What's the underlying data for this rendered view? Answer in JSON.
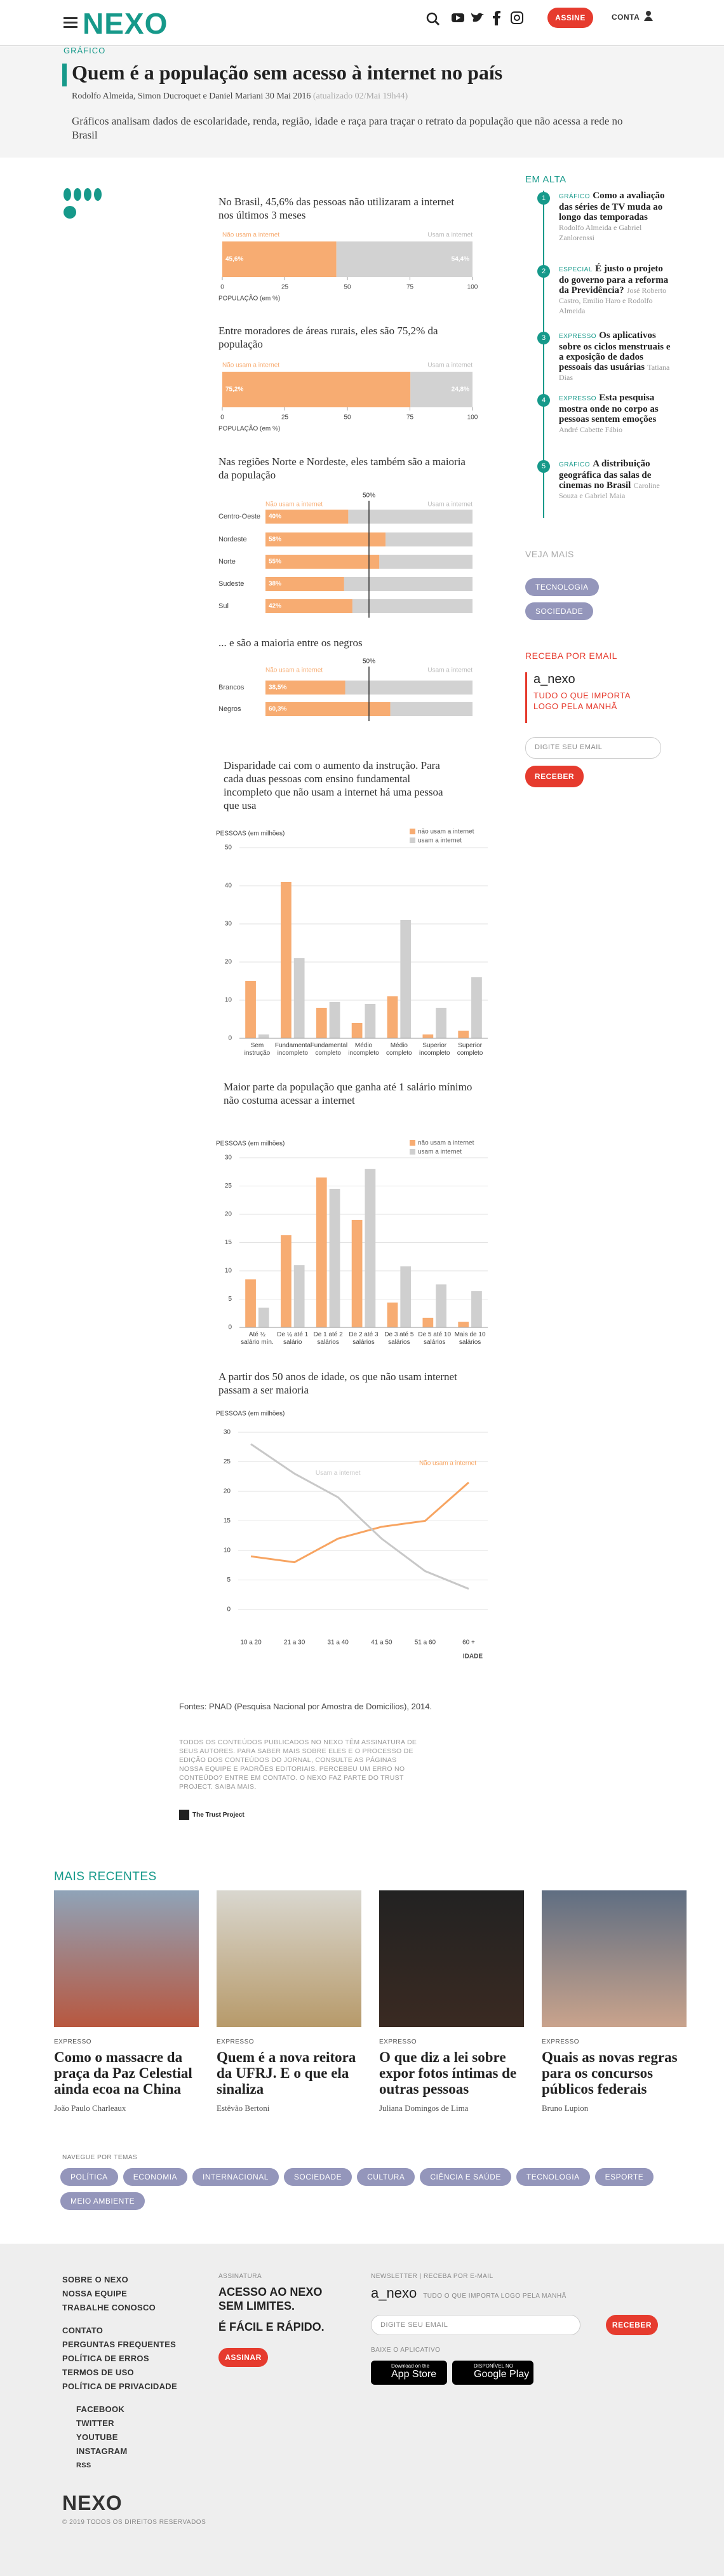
{
  "header": {
    "logo": "NEXO",
    "subscribe": "ASSINE",
    "account": "CONTA"
  },
  "article": {
    "kicker": "GRÁFICO",
    "title": "Quem é a população sem acesso à internet no país",
    "authors": "Rodolfo Almeida, Simon Ducroquet e Daniel Mariani",
    "date": "30 Mai 2016",
    "updated": "(atualizado 02/Mai 19h44)",
    "lede": "Gráficos analisam dados de escolaridade, renda, região, idade e raça para traçar o retrato da população que não acessa a rede no Brasil",
    "source": "Fontes: PNAD (Pesquisa Nacional por Amostra de Domicílios), 2014.",
    "disclaimer": "TODOS OS CONTEÚDOS PUBLICADOS NO NEXO TÊM ASSINATURA DE SEUS AUTORES. PARA SABER MAIS SOBRE ELES E O PROCESSO DE EDIÇÃO DOS CONTEÚDOS DO JORNAL, CONSULTE AS PÁGINAS NOSSA EQUIPE E PADRÕES EDITORIAIS. PERCEBEU UM ERRO NO CONTEÚDO? ENTRE EM CONTATO. O NEXO FAZ PARTE DO TRUST PROJECT. SAIBA MAIS.",
    "trust": "The Trust Project"
  },
  "chart_data": [
    {
      "type": "bar",
      "horizontal": true,
      "stacked": true,
      "title": "No Brasil, 45,6% das pessoas não utilizaram a internet nos últimos 3 meses",
      "series": [
        {
          "name": "Não usam a internet",
          "color": "#f7ac72",
          "values": [
            45.6
          ],
          "value_labels": [
            "45,6%"
          ]
        },
        {
          "name": "Usam a internet",
          "color": "#d2d2d2",
          "values": [
            54.4
          ],
          "value_labels": [
            "54,4%"
          ]
        }
      ],
      "xlim": [
        0,
        100
      ],
      "xticks": [
        0,
        25,
        50,
        75,
        100
      ],
      "xlabel": "POPULAÇÃO (em %)"
    },
    {
      "type": "bar",
      "horizontal": true,
      "stacked": true,
      "title": "Entre moradores de áreas rurais, eles são 75,2% da população",
      "series": [
        {
          "name": "Não usam a internet",
          "color": "#f7ac72",
          "values": [
            75.2
          ],
          "value_labels": [
            "75,2%"
          ]
        },
        {
          "name": "Usam a internet",
          "color": "#d2d2d2",
          "values": [
            24.8
          ],
          "value_labels": [
            "24,8%"
          ]
        }
      ],
      "xlim": [
        0,
        100
      ],
      "xticks": [
        0,
        25,
        50,
        75,
        100
      ],
      "xlabel": "POPULAÇÃO (em %)"
    },
    {
      "type": "bar",
      "horizontal": true,
      "stacked": true,
      "title": "Nas regiões Norte e Nordeste, eles também são a maioria da população",
      "categories": [
        "Centro-Oeste",
        "Nordeste",
        "Norte",
        "Sudeste",
        "Sul"
      ],
      "series": [
        {
          "name": "Não usam a internet",
          "color": "#f7ac72",
          "values": [
            40,
            58,
            55,
            38,
            42
          ],
          "value_labels": [
            "40%",
            "58%",
            "55%",
            "38%",
            "42%"
          ]
        },
        {
          "name": "Usam a internet",
          "color": "#d2d2d2",
          "values": [
            60,
            42,
            45,
            62,
            58
          ]
        }
      ],
      "xlim": [
        0,
        100
      ],
      "reference": {
        "value": 50,
        "label": "50%"
      }
    },
    {
      "type": "bar",
      "horizontal": true,
      "stacked": true,
      "title": "... e são a maioria entre os negros",
      "categories": [
        "Brancos",
        "Negros"
      ],
      "series": [
        {
          "name": "Não usam a internet",
          "color": "#f7ac72",
          "values": [
            38.5,
            60.3
          ],
          "value_labels": [
            "38,5%",
            "60,3%"
          ]
        },
        {
          "name": "Usam a internet",
          "color": "#d2d2d2",
          "values": [
            61.5,
            39.7
          ]
        }
      ],
      "xlim": [
        0,
        100
      ],
      "reference": {
        "value": 50,
        "label": "50%"
      }
    },
    {
      "type": "bar",
      "title": "Disparidade cai com o aumento da instrução. Para cada duas pessoas com ensino fundamental incompleto que não usam a internet há uma pessoa que usa",
      "ylabel": "PESSOAS (em milhões)",
      "categories": [
        "Sem instrução",
        "Fundamental incompleto",
        "Fundamental completo",
        "Médio incompleto",
        "Médio completo",
        "Superior incompleto",
        "Superior completo"
      ],
      "series": [
        {
          "name": "não usam a internet",
          "color": "#f7ac72",
          "values": [
            15,
            41,
            8,
            4,
            11,
            1,
            2
          ]
        },
        {
          "name": "usam a internet",
          "color": "#cfcfcf",
          "values": [
            1,
            21,
            9.5,
            9,
            31,
            8,
            16
          ]
        }
      ],
      "ylim": [
        0,
        50
      ],
      "yticks": [
        0,
        10,
        20,
        30,
        40,
        50
      ],
      "grid": true
    },
    {
      "type": "bar",
      "title": "Maior parte da população que ganha até 1 salário mínimo não costuma acessar a internet",
      "ylabel": "PESSOAS (em milhões)",
      "categories": [
        "Até ½ salário mín.",
        "De ½ até 1 salário",
        "De 1 até 2 salários",
        "De 2 até 3 salários",
        "De 3 até 5 salários",
        "De 5 até 10 salários",
        "Mais de 10 salários"
      ],
      "series": [
        {
          "name": "não usam a internet",
          "color": "#f7ac72",
          "values": [
            8.5,
            16.3,
            26.5,
            19,
            4.4,
            1.7,
            1
          ]
        },
        {
          "name": "usam a internet",
          "color": "#cfcfcf",
          "values": [
            3.5,
            11,
            24.5,
            28,
            10.8,
            7.6,
            6.4
          ]
        }
      ],
      "ylim": [
        0,
        30
      ],
      "yticks": [
        0,
        5,
        10,
        15,
        20,
        25,
        30
      ],
      "grid": true
    },
    {
      "type": "line",
      "title": "A partir dos 50 anos de idade, os que não usam internet passam a ser maioria",
      "ylabel": "PESSOAS (em milhões)",
      "xlabel": "IDADE",
      "categories": [
        "10 a 20",
        "21 a 30",
        "31 a 40",
        "41 a 50",
        "51 a 60",
        "60 +"
      ],
      "series": [
        {
          "name": "Não usam a internet",
          "color": "#f7a461",
          "values": [
            9,
            8,
            12,
            14,
            15,
            21.5
          ]
        },
        {
          "name": "Usam a internet",
          "color": "#c8c8c8",
          "values": [
            28,
            23,
            19,
            12,
            6.5,
            3.5
          ]
        }
      ],
      "ylim": [
        0,
        30
      ],
      "yticks": [
        0,
        5,
        10,
        15,
        20,
        25,
        30
      ],
      "grid": true
    }
  ],
  "sidebar": {
    "heading": "EM ALTA",
    "items": [
      {
        "rank": 1,
        "tag": "GRÁFICO",
        "title": "Como a avaliação das séries de TV muda ao longo das temporadas",
        "authors": "Rodolfo Almeida e Gabriel Zanlorenssi"
      },
      {
        "rank": 2,
        "tag": "ESPECIAL",
        "title": "É justo o projeto do governo para a reforma da Previdência?",
        "authors": "José Roberto Castro, Emilio Haro e Rodolfo Almeida"
      },
      {
        "rank": 3,
        "tag": "EXPRESSO",
        "title": "Os aplicativos sobre os ciclos menstruais e a exposição de dados pessoais das usuárias",
        "authors": "Tatiana Dias"
      },
      {
        "rank": 4,
        "tag": "EXPRESSO",
        "title": "Esta pesquisa mostra onde no corpo as pessoas sentem emoções",
        "authors": "André Cabette Fábio"
      },
      {
        "rank": 5,
        "tag": "GRÁFICO",
        "title": "A distribuição geográfica das salas de cinemas no Brasil",
        "authors": "Caroline Souza e Gabriel Maia"
      }
    ],
    "more_heading": "VEJA MAIS",
    "tags": [
      "TECNOLOGIA",
      "SOCIEDADE"
    ],
    "newsletter_heading": "RECEBA POR EMAIL",
    "newsletter_name": "a_nexo",
    "newsletter_text": "TUDO O QUE IMPORTA LOGO PELA MANHÃ",
    "email_placeholder": "DIGITE SEU EMAIL",
    "button": "RECEBER"
  },
  "recent": {
    "heading": "MAIS RECENTES",
    "items": [
      {
        "tag": "EXPRESSO",
        "title": "Como o massacre da praça da Paz Celestial ainda ecoa na China",
        "author": "João Paulo Charleaux"
      },
      {
        "tag": "EXPRESSO",
        "title": "Quem é a nova reitora da UFRJ. E o que ela sinaliza",
        "author": "Estêvão Bertoni"
      },
      {
        "tag": "EXPRESSO",
        "title": "O que diz a lei sobre expor fotos íntimas de outras pessoas",
        "author": "Juliana Domingos de Lima"
      },
      {
        "tag": "EXPRESSO",
        "title": "Quais as novas regras para os concursos públicos federais",
        "author": "Bruno Lupion"
      }
    ]
  },
  "topics": {
    "heading": "NAVEGUE POR TEMAS",
    "tags": [
      "POLÍTICA",
      "ECONOMIA",
      "INTERNACIONAL",
      "SOCIEDADE",
      "CULTURA",
      "CIÊNCIA E SAÚDE",
      "TECNOLOGIA",
      "ESPORTE",
      "MEIO AMBIENTE"
    ]
  },
  "footer": {
    "links": [
      "SOBRE O NEXO",
      "NOSSA EQUIPE",
      "TRABALHE CONOSCO",
      "CONTATO",
      "PERGUNTAS FREQUENTES",
      "POLÍTICA DE ERROS",
      "TERMOS DE USO",
      "POLÍTICA DE PRIVACIDADE"
    ],
    "social": [
      "FACEBOOK",
      "TWITTER",
      "YOUTUBE",
      "INSTAGRAM",
      "RSS"
    ],
    "logo": "NEXO",
    "copyright": "© 2019 TODOS OS DIREITOS RESERVADOS",
    "subscription_label": "ASSINATURA",
    "subscription_title": "ACESSO AO NEXO SEM LIMITES.",
    "subscription_sub": "É FÁCIL E RÁPIDO.",
    "subscription_button": "ASSINAR",
    "newsletter_label": "NEWSLETTER | RECEBA POR E-MAIL",
    "newsletter_name": "a_nexo",
    "newsletter_text": "TUDO O QUE IMPORTA LOGO PELA MANHÃ",
    "email_placeholder": "DIGITE SEU EMAIL",
    "newsletter_button": "RECEBER",
    "app_label": "BAIXE O APLICATIVO",
    "app_store_small": "Download on the",
    "app_store": "App Store",
    "google_play_small": "DISPONÍVEL NO",
    "google_play": "Google Play"
  }
}
